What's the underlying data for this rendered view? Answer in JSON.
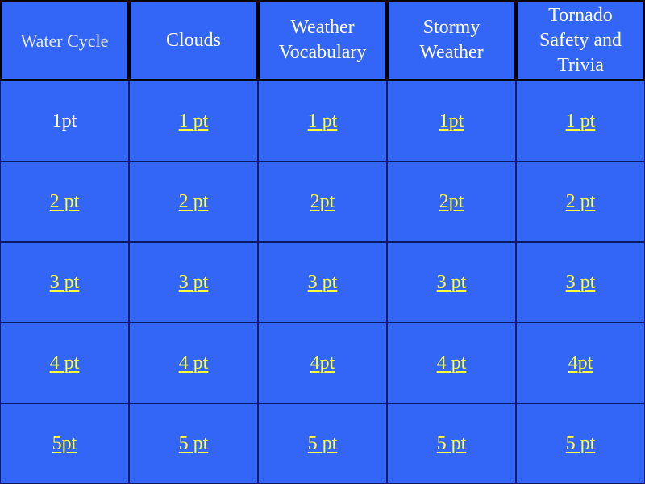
{
  "categories": [
    "Water Cycle",
    "Clouds",
    "Weather Vocabulary",
    "Stormy Weather",
    "Tornado Safety and Trivia"
  ],
  "colors": {
    "cell": "#3366f7",
    "link": "#ffff33",
    "visited": "#ffffff"
  },
  "rows": [
    [
      "1pt",
      "1 pt",
      "1 pt",
      "1pt",
      "1 pt"
    ],
    [
      "2 pt",
      "2 pt",
      "2pt",
      "2pt",
      "2 pt"
    ],
    [
      "3 pt",
      "3 pt",
      "3 pt",
      "3 pt",
      "3 pt"
    ],
    [
      "4 pt",
      "4 pt",
      "4pt",
      "4 pt",
      "4pt"
    ],
    [
      "5pt",
      "5 pt",
      "5 pt",
      "5 pt",
      "5 pt"
    ]
  ],
  "used": [
    [
      true,
      false,
      false,
      false,
      false
    ]
  ]
}
